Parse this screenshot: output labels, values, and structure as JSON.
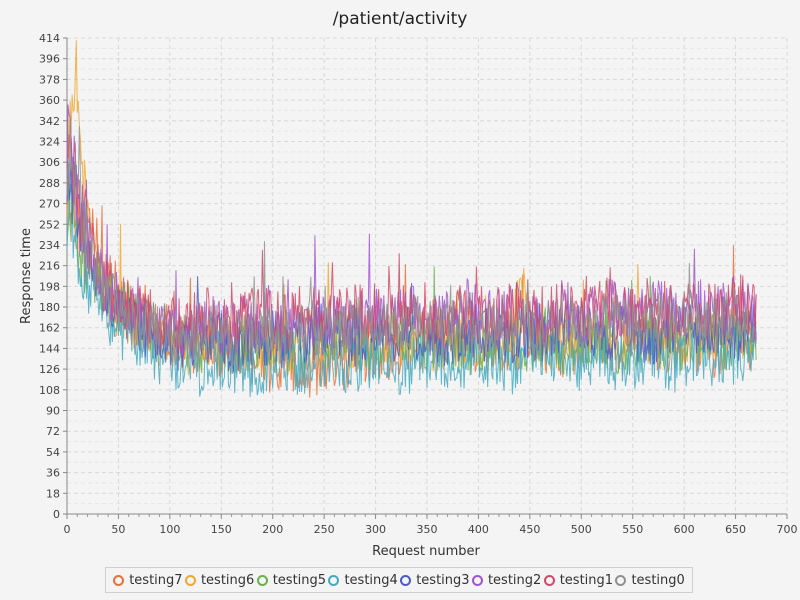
{
  "chart_data": {
    "type": "line",
    "title": "/patient/activity",
    "xlabel": "Request number",
    "ylabel": "Response time",
    "xlim": [
      0,
      700
    ],
    "ylim": [
      0,
      414
    ],
    "xticks": [
      0,
      50,
      100,
      150,
      200,
      250,
      300,
      350,
      400,
      450,
      500,
      550,
      600,
      650,
      700
    ],
    "yticks": [
      0,
      18,
      36,
      54,
      72,
      90,
      108,
      126,
      144,
      162,
      180,
      198,
      216,
      234,
      252,
      270,
      288,
      306,
      324,
      342,
      360,
      378,
      396,
      414
    ],
    "grid": true,
    "legend_position": "bottom",
    "series": [
      {
        "name": "testing7",
        "color": "#e8703a",
        "values": [
          300,
          262,
          232,
          248,
          214,
          206,
          190,
          180,
          170,
          176,
          162,
          158,
          156,
          150,
          146,
          142,
          148,
          140,
          138,
          136,
          138,
          140,
          134,
          130,
          128,
          130,
          126,
          122,
          120,
          124,
          126,
          128,
          130,
          132,
          136,
          138,
          140,
          142,
          146,
          148,
          150,
          152,
          148,
          150,
          152,
          150,
          148,
          146,
          144,
          146,
          148,
          150,
          152,
          154,
          150,
          148,
          146,
          144,
          146,
          150,
          156,
          152,
          146,
          144,
          146,
          148,
          152,
          150,
          146,
          144,
          148,
          152,
          150,
          146,
          144,
          146,
          150,
          152,
          150,
          148
        ]
      },
      {
        "name": "testing6",
        "color": "#f0a830",
        "values": [
          320,
          404,
          278,
          226,
          200,
          188,
          174,
          168,
          164,
          160,
          156,
          152,
          150,
          148,
          146,
          150,
          148,
          144,
          140,
          142,
          146,
          150,
          148,
          144,
          140,
          142,
          146,
          150,
          152,
          154,
          150,
          146,
          150,
          154,
          158,
          156,
          152,
          150,
          154,
          156,
          158,
          154,
          150,
          148,
          150,
          154,
          156,
          152,
          148,
          146,
          150,
          156,
          206,
          160,
          154,
          150,
          148,
          152,
          156,
          158,
          154,
          150,
          148,
          152,
          156,
          160,
          158,
          154,
          150,
          148,
          152,
          156,
          158,
          154,
          150,
          152,
          156,
          160,
          158,
          154
        ]
      },
      {
        "name": "testing5",
        "color": "#6ab04c",
        "values": [
          290,
          256,
          222,
          210,
          200,
          192,
          182,
          176,
          168,
          164,
          160,
          156,
          152,
          150,
          148,
          146,
          150,
          152,
          148,
          144,
          142,
          146,
          150,
          152,
          150,
          148,
          144,
          142,
          146,
          150,
          152,
          154,
          150,
          146,
          144,
          146,
          150,
          154,
          156,
          152,
          148,
          146,
          150,
          152,
          150,
          146,
          144,
          146,
          150,
          154,
          152,
          148,
          146,
          150,
          154,
          156,
          152,
          148,
          146,
          150,
          154,
          156,
          152,
          148,
          146,
          150,
          154,
          156,
          152,
          148,
          146,
          150,
          154,
          156,
          152,
          150,
          148,
          152,
          156,
          154
        ]
      },
      {
        "name": "testing4",
        "color": "#45aac0",
        "values": [
          270,
          234,
          204,
          190,
          176,
          168,
          160,
          154,
          150,
          146,
          140,
          136,
          132,
          130,
          128,
          126,
          130,
          134,
          132,
          128,
          124,
          122,
          126,
          130,
          134,
          132,
          128,
          126,
          130,
          134,
          136,
          134,
          130,
          128,
          132,
          136,
          138,
          134,
          130,
          128,
          132,
          136,
          134,
          130,
          126,
          130,
          134,
          138,
          136,
          132,
          128,
          126,
          130,
          134,
          138,
          136,
          132,
          128,
          130,
          134,
          138,
          140,
          136,
          132,
          130,
          134,
          138,
          140,
          136,
          132,
          130,
          134,
          138,
          140,
          136,
          132,
          134,
          138,
          142,
          140
        ]
      },
      {
        "name": "testing3",
        "color": "#4a5bc8",
        "values": [
          310,
          274,
          238,
          214,
          196,
          184,
          176,
          170,
          166,
          162,
          158,
          154,
          152,
          150,
          150,
          152,
          154,
          152,
          150,
          148,
          150,
          154,
          156,
          154,
          150,
          148,
          150,
          154,
          156,
          158,
          156,
          152,
          150,
          154,
          158,
          160,
          158,
          154,
          152,
          156,
          160,
          162,
          158,
          154,
          152,
          156,
          160,
          162,
          158,
          154,
          152,
          156,
          160,
          162,
          158,
          156,
          158,
          162,
          164,
          160,
          156,
          154,
          158,
          162,
          164,
          160,
          156,
          154,
          158,
          162,
          164,
          160,
          156,
          158,
          162,
          164,
          160,
          156,
          158,
          160
        ]
      },
      {
        "name": "testing2",
        "color": "#a055d0",
        "values": [
          330,
          290,
          250,
          224,
          204,
          192,
          184,
          178,
          174,
          170,
          166,
          164,
          162,
          160,
          160,
          164,
          168,
          166,
          162,
          160,
          164,
          168,
          170,
          168,
          164,
          162,
          166,
          170,
          172,
          170,
          166,
          164,
          168,
          172,
          174,
          172,
          168,
          166,
          170,
          174,
          176,
          174,
          170,
          168,
          172,
          176,
          178,
          174,
          170,
          168,
          172,
          176,
          178,
          174,
          170,
          172,
          176,
          178,
          174,
          170,
          172,
          176,
          180,
          178,
          174,
          172,
          176,
          180,
          178,
          174,
          172,
          176,
          180,
          178,
          174,
          176,
          180,
          182,
          178,
          174
        ]
      },
      {
        "name": "testing1",
        "color": "#d04a6a",
        "values": [
          340,
          296,
          256,
          228,
          206,
          194,
          186,
          180,
          176,
          172,
          168,
          166,
          164,
          164,
          166,
          170,
          172,
          170,
          166,
          164,
          168,
          172,
          174,
          172,
          168,
          166,
          170,
          174,
          176,
          174,
          170,
          168,
          172,
          176,
          178,
          176,
          172,
          170,
          174,
          178,
          180,
          176,
          172,
          170,
          174,
          178,
          180,
          176,
          172,
          170,
          174,
          178,
          180,
          176,
          172,
          174,
          178,
          180,
          176,
          172,
          174,
          178,
          182,
          180,
          176,
          174,
          178,
          182,
          180,
          176,
          174,
          178,
          182,
          180,
          176,
          178,
          182,
          184,
          180,
          176
        ]
      },
      {
        "name": "testing0",
        "color": "#909090",
        "values": [
          316,
          280,
          242,
          218,
          198,
          186,
          178,
          172,
          168,
          164,
          160,
          158,
          156,
          154,
          154,
          158,
          160,
          158,
          154,
          152,
          156,
          160,
          162,
          160,
          156,
          154,
          158,
          162,
          164,
          162,
          158,
          156,
          160,
          164,
          166,
          164,
          160,
          158,
          162,
          166,
          168,
          164,
          160,
          158,
          162,
          166,
          168,
          164,
          160,
          158,
          162,
          166,
          168,
          164,
          160,
          162,
          166,
          168,
          164,
          160,
          162,
          166,
          170,
          168,
          164,
          162,
          166,
          170,
          168,
          164,
          162,
          166,
          170,
          168,
          164,
          166,
          170,
          172,
          168,
          164
        ]
      }
    ],
    "x_max_point": 670
  }
}
